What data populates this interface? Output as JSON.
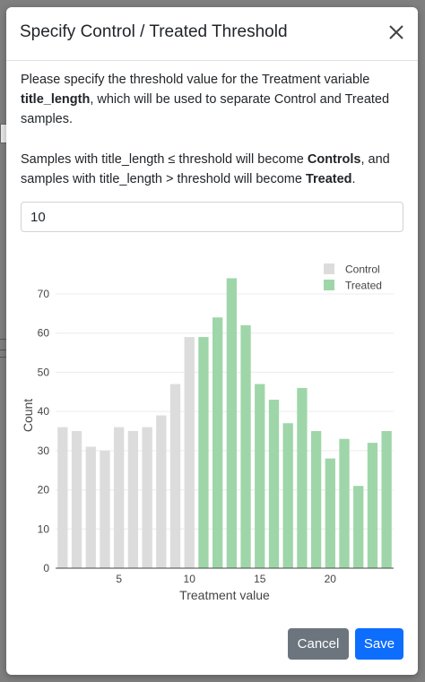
{
  "modal": {
    "title": "Specify Control / Treated Threshold",
    "intro_before": "Please specify the threshold value for the Treatment variable ",
    "intro_variable": "title_length",
    "intro_after": ", which will be used to separate Control and Treated samples.",
    "rule_1": "Samples with title_length ≤ threshold will become ",
    "rule_controls": "Controls",
    "rule_2": ", and samples with title_length > threshold will become ",
    "rule_treated": "Treated",
    "rule_end": ".",
    "threshold_value": "10",
    "cancel_label": "Cancel",
    "save_label": "Save",
    "close_icon": "close-icon"
  },
  "colors": {
    "control": "#dcdcdc",
    "treated": "#9fd6a9",
    "save_button": "#0d6efd",
    "cancel_button": "#6c757d"
  },
  "chart_data": {
    "type": "bar",
    "xlabel": "Treatment value",
    "ylabel": "Count",
    "threshold": 10,
    "x": [
      1,
      2,
      3,
      4,
      5,
      6,
      7,
      8,
      9,
      10,
      11,
      12,
      13,
      14,
      15,
      16,
      17,
      18,
      19,
      20,
      21,
      22,
      23,
      24
    ],
    "values": [
      36,
      35,
      31,
      30,
      36,
      35,
      36,
      39,
      47,
      59,
      59,
      64,
      74,
      62,
      47,
      43,
      37,
      46,
      35,
      28,
      33,
      21,
      32,
      35
    ],
    "series": [
      {
        "name": "Control"
      },
      {
        "name": "Treated"
      }
    ],
    "xticks": [
      5,
      10,
      15,
      20
    ],
    "yticks": [
      0,
      10,
      20,
      30,
      40,
      50,
      60,
      70
    ],
    "xlim": [
      0.5,
      24.5
    ],
    "ylim": [
      0,
      78
    ],
    "grid": true,
    "legend_position": "top-right"
  }
}
